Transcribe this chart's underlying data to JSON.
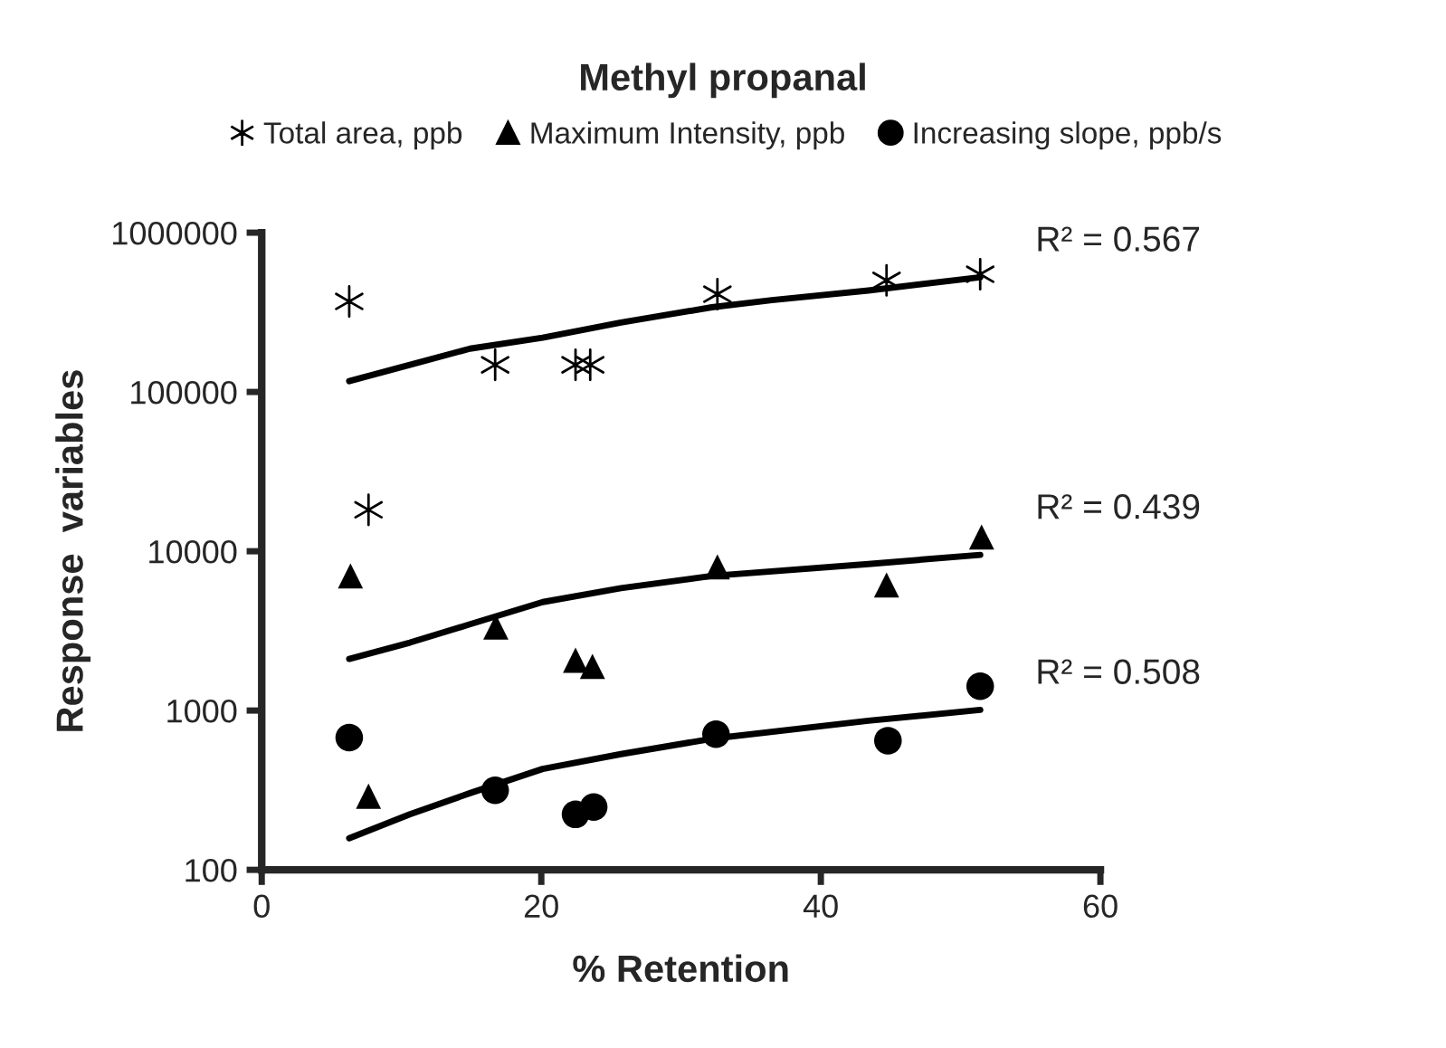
{
  "chart_data": {
    "type": "scatter",
    "title": "Methyl propanal",
    "xlabel": "% Retention",
    "ylabel": "Response  variables",
    "series": [
      {
        "name": "Total area, ppb",
        "color": "#000000",
        "marker": "cross",
        "x": [
          6.26,
          7.64,
          16.7,
          22.45,
          23.5,
          32.6,
          44.7,
          51.4
        ],
        "values": [
          370000,
          18200,
          148000,
          148000,
          148000,
          411000,
          502000,
          548000
        ]
      },
      {
        "name": "Maximum Intensity, ppb",
        "color": "#000000",
        "marker": "triangle",
        "x": [
          6.35,
          7.64,
          16.75,
          22.45,
          23.66,
          32.6,
          44.7,
          51.5
        ],
        "values": [
          7000,
          290,
          3340,
          2070,
          1890,
          7980,
          6150,
          12300
        ]
      },
      {
        "name": "Increasing slope, ppb/s",
        "color": "#000000",
        "marker": "circle",
        "x": [
          6.26,
          16.7,
          22.45,
          23.75,
          32.5,
          44.8,
          51.4
        ],
        "values": [
          676,
          316,
          223,
          248,
          711,
          647,
          1420
        ]
      },
      {
        "type": "line",
        "color": "#000000",
        "marker": "none",
        "x": [
          6.26,
          10.6,
          14.9,
          20.1,
          25.7,
          32.2,
          36.5,
          43.4,
          51.4
        ],
        "values": [
          117000,
          148000,
          187000,
          219000,
          273000,
          340000,
          377000,
          433000,
          525000
        ]
      },
      {
        "type": "line",
        "color": "#000000",
        "marker": "none",
        "x": [
          6.26,
          10.6,
          14.9,
          20.1,
          25.7,
          32.2,
          43.4,
          51.4
        ],
        "values": [
          2110,
          2670,
          3480,
          4800,
          5870,
          7000,
          8320,
          9490
        ]
      },
      {
        "type": "line",
        "color": "#000000",
        "marker": "none",
        "x": [
          6.26,
          10.6,
          14.9,
          20.1,
          25.7,
          32.2,
          43.4,
          51.4
        ],
        "values": [
          158,
          223,
          303,
          430,
          533,
          665,
          863,
          1010
        ]
      }
    ],
    "annotations": [
      "R² = 0.567",
      "R² = 0.439",
      "R² = 0.508"
    ],
    "log": "y",
    "xlim": [
      0,
      60
    ],
    "xticks": [
      0,
      20,
      40,
      60
    ],
    "ylim": [
      100,
      1000000
    ],
    "yticks": [
      100,
      1000,
      10000,
      100000,
      1000000
    ],
    "grid": false,
    "legend": "top"
  }
}
